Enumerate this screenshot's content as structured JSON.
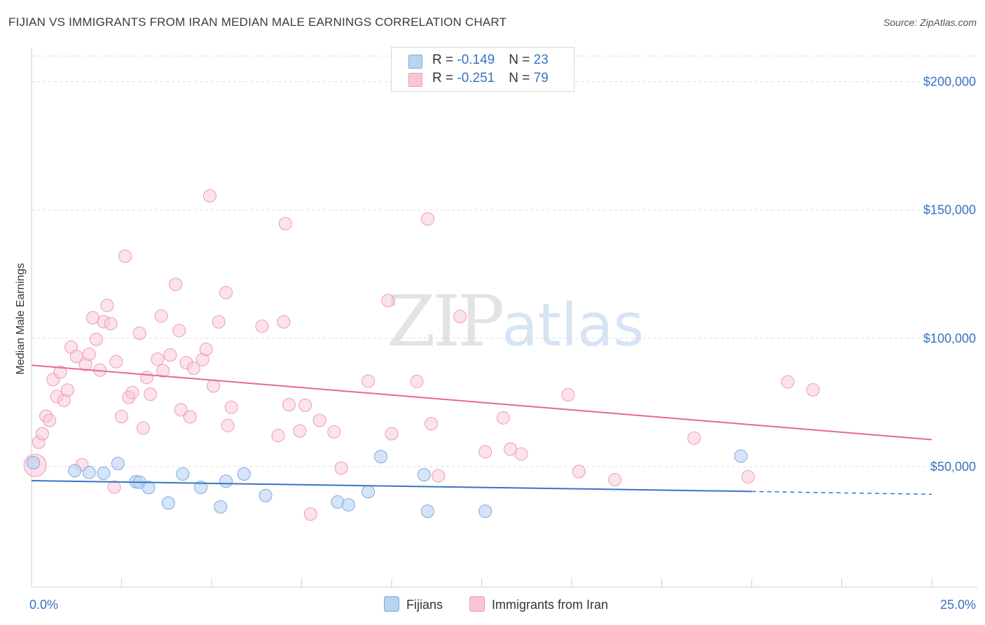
{
  "title": "FIJIAN VS IMMIGRANTS FROM IRAN MEDIAN MALE EARNINGS CORRELATION CHART",
  "source": "Source: ZipAtlas.com",
  "watermark": {
    "zip": "ZIP",
    "atlas": "atlas"
  },
  "stats": {
    "row1": {
      "r_label": "R = ",
      "r_value": "-0.149",
      "n_label": "N = ",
      "n_value": "23"
    },
    "row2": {
      "r_label": "R = ",
      "r_value": "-0.251",
      "n_label": "N = ",
      "n_value": "79"
    }
  },
  "legend": {
    "fijians": "Fijians",
    "iran": "Immigrants from Iran"
  },
  "colors": {
    "fijian_fill": "#b9d3f2",
    "fijian_stroke": "#7fa9dd",
    "fijian_line": "#3874c8",
    "iran_fill": "#f9c5d4",
    "iran_stroke": "#ee9bb4",
    "iran_line": "#e46a92",
    "tick_text": "#3a72c4",
    "grid": "#dddddd"
  },
  "chart_data": {
    "type": "scatter",
    "title": "FIJIAN VS IMMIGRANTS FROM IRAN MEDIAN MALE EARNINGS CORRELATION CHART",
    "xlabel": "",
    "ylabel": "Median Male Earnings",
    "xlim": [
      0,
      25
    ],
    "ylim": [
      3000,
      210000
    ],
    "x_tick_labels": [
      "0.0%",
      "25.0%"
    ],
    "y_ticks": [
      {
        "value": 50000,
        "label": "$50,000"
      },
      {
        "value": 100000,
        "label": "$100,000"
      },
      {
        "value": 150000,
        "label": "$150,000"
      },
      {
        "value": 200000,
        "label": "$200,000"
      }
    ],
    "series": [
      {
        "name": "Fijians",
        "r": -0.149,
        "n": 23,
        "trend": {
          "x0": 0,
          "y0": 44500,
          "x1": 20,
          "y1": 40300,
          "dash_to_x": 25,
          "dash_to_y": 39200
        },
        "points": [
          [
            0.05,
            51500
          ],
          [
            1.2,
            48400
          ],
          [
            1.6,
            47700
          ],
          [
            2.0,
            47400
          ],
          [
            2.4,
            51200
          ],
          [
            2.9,
            44100
          ],
          [
            3.0,
            43900
          ],
          [
            3.25,
            41800
          ],
          [
            3.8,
            35800
          ],
          [
            4.2,
            47100
          ],
          [
            4.7,
            41900
          ],
          [
            5.25,
            34300
          ],
          [
            5.4,
            44300
          ],
          [
            5.9,
            47100
          ],
          [
            6.5,
            38700
          ],
          [
            8.5,
            36200
          ],
          [
            8.8,
            35100
          ],
          [
            9.35,
            40200
          ],
          [
            9.7,
            53900
          ],
          [
            10.9,
            46800
          ],
          [
            11.0,
            32600
          ],
          [
            12.6,
            32600
          ],
          [
            19.7,
            54100
          ]
        ]
      },
      {
        "name": "Immigrants from Iran",
        "r": -0.251,
        "n": 79,
        "trend": {
          "x0": 0,
          "y0": 89500,
          "x1": 25,
          "y1": 60500
        },
        "points": [
          [
            0.1,
            50500
          ],
          [
            0.2,
            59500
          ],
          [
            0.3,
            62800
          ],
          [
            0.4,
            69700
          ],
          [
            0.5,
            68000
          ],
          [
            0.6,
            83900
          ],
          [
            0.7,
            77300
          ],
          [
            0.8,
            86800
          ],
          [
            0.9,
            75800
          ],
          [
            1.0,
            79800
          ],
          [
            1.1,
            96600
          ],
          [
            1.25,
            92900
          ],
          [
            1.4,
            50700
          ],
          [
            1.5,
            89800
          ],
          [
            1.6,
            93800
          ],
          [
            1.7,
            108000
          ],
          [
            1.8,
            99600
          ],
          [
            1.9,
            87600
          ],
          [
            2.0,
            106500
          ],
          [
            2.1,
            112800
          ],
          [
            2.2,
            105700
          ],
          [
            2.35,
            90900
          ],
          [
            2.5,
            69500
          ],
          [
            2.6,
            132000
          ],
          [
            2.7,
            77000
          ],
          [
            2.8,
            78900
          ],
          [
            3.0,
            102000
          ],
          [
            3.1,
            65000
          ],
          [
            3.2,
            84700
          ],
          [
            3.3,
            78200
          ],
          [
            3.5,
            91900
          ],
          [
            3.6,
            108700
          ],
          [
            3.65,
            87300
          ],
          [
            3.85,
            93500
          ],
          [
            4.0,
            121000
          ],
          [
            4.1,
            103000
          ],
          [
            4.15,
            72100
          ],
          [
            4.3,
            90500
          ],
          [
            4.4,
            69400
          ],
          [
            4.5,
            88300
          ],
          [
            4.75,
            91700
          ],
          [
            4.85,
            95700
          ],
          [
            4.95,
            155500
          ],
          [
            5.05,
            81400
          ],
          [
            5.2,
            106400
          ],
          [
            5.4,
            117800
          ],
          [
            5.45,
            66000
          ],
          [
            5.55,
            73100
          ],
          [
            6.4,
            104700
          ],
          [
            6.85,
            62100
          ],
          [
            7.0,
            106400
          ],
          [
            7.05,
            144700
          ],
          [
            7.15,
            74100
          ],
          [
            7.45,
            63900
          ],
          [
            7.6,
            73900
          ],
          [
            7.75,
            31500
          ],
          [
            8.0,
            68000
          ],
          [
            8.4,
            63500
          ],
          [
            8.6,
            49400
          ],
          [
            9.35,
            83300
          ],
          [
            9.9,
            114700
          ],
          [
            10.0,
            62800
          ],
          [
            10.7,
            83200
          ],
          [
            11.0,
            146500
          ],
          [
            11.1,
            66700
          ],
          [
            11.3,
            46400
          ],
          [
            11.9,
            108500
          ],
          [
            12.6,
            55800
          ],
          [
            13.1,
            69000
          ],
          [
            13.3,
            56800
          ],
          [
            13.6,
            54900
          ],
          [
            14.9,
            78000
          ],
          [
            15.2,
            48100
          ],
          [
            16.2,
            44900
          ],
          [
            18.4,
            61100
          ],
          [
            19.9,
            46000
          ],
          [
            21.0,
            83000
          ],
          [
            21.7,
            79900
          ],
          [
            2.3,
            42000
          ]
        ]
      }
    ]
  }
}
